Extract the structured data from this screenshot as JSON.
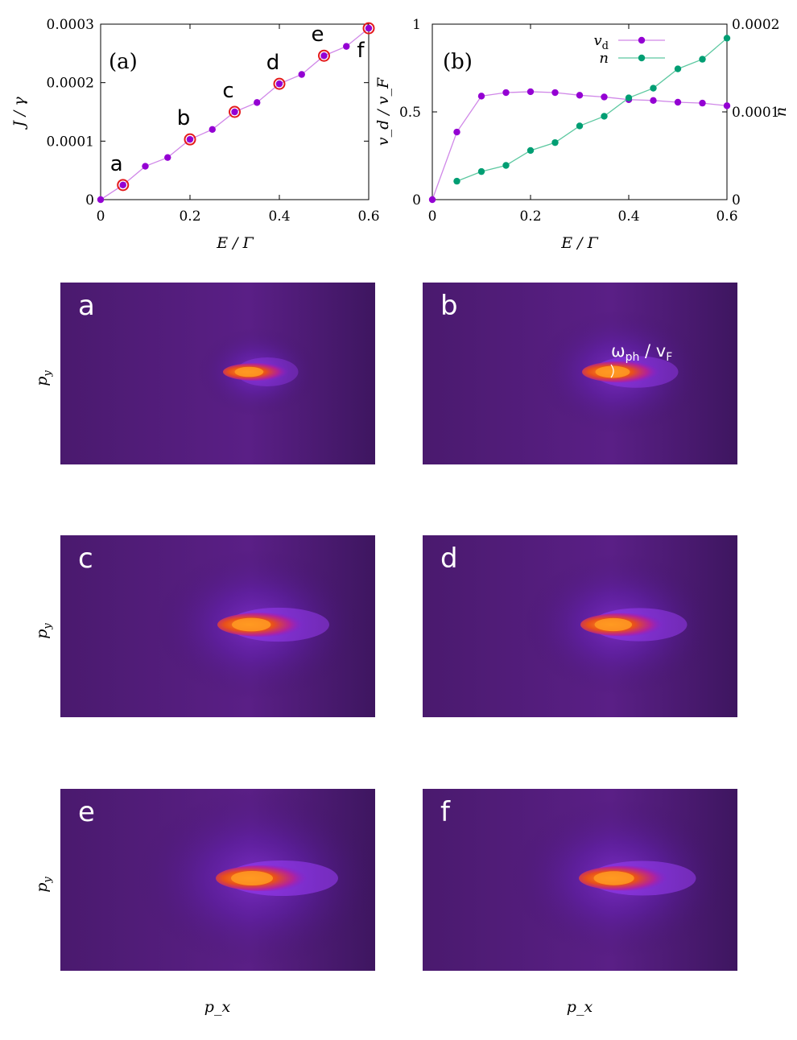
{
  "chart_data": [
    {
      "type": "line",
      "panel": "(a)",
      "xlabel": "E / Γ",
      "ylabel": "J / γ",
      "xlim": [
        0,
        0.6
      ],
      "ylim": [
        0,
        0.0003
      ],
      "xticks": [
        0,
        0.2,
        0.4,
        0.6
      ],
      "xtick_labels": [
        "0",
        "0.2",
        "0.4",
        "0.6"
      ],
      "yticks": [
        0,
        0.0001,
        0.0002,
        0.0003
      ],
      "ytick_labels": [
        "0",
        "0.0001",
        "0.0002",
        "0.0003"
      ],
      "x": [
        0,
        0.05,
        0.1,
        0.15,
        0.2,
        0.25,
        0.3,
        0.35,
        0.4,
        0.45,
        0.5,
        0.55,
        0.6
      ],
      "y": [
        0,
        2.5e-05,
        5.7e-05,
        7.2e-05,
        0.000103,
        0.00012,
        0.00015,
        0.000166,
        0.000198,
        0.000214,
        0.000246,
        0.000262,
        0.000293
      ],
      "series_color": "#9400d3",
      "highlight_color": "#e41a1c",
      "highlighted": [
        {
          "label": "a",
          "x": 0.05
        },
        {
          "label": "b",
          "x": 0.2
        },
        {
          "label": "c",
          "x": 0.3
        },
        {
          "label": "d",
          "x": 0.4
        },
        {
          "label": "e",
          "x": 0.5
        },
        {
          "label": "f",
          "x": 0.6
        }
      ]
    },
    {
      "type": "line",
      "panel": "(b)",
      "xlabel": "E / Γ",
      "ylabel": "v_d / v_F",
      "y2label": "n",
      "xlim": [
        0,
        0.6
      ],
      "ylim": [
        0,
        1
      ],
      "y2lim": [
        0,
        0.0002
      ],
      "xticks": [
        0,
        0.2,
        0.4,
        0.6
      ],
      "xtick_labels": [
        "0",
        "0.2",
        "0.4",
        "0.6"
      ],
      "yticks": [
        0,
        0.5,
        1
      ],
      "ytick_labels": [
        "0",
        "0.5",
        "1"
      ],
      "y2ticks": [
        0,
        0.0001,
        0.0002
      ],
      "y2tick_labels": [
        "0",
        "0.0001",
        "0.0002"
      ],
      "legend_position": "top-right",
      "series": [
        {
          "name": "v",
          "name_sub": "d",
          "axis": "left",
          "color": "#9400d3",
          "x": [
            0,
            0.05,
            0.1,
            0.15,
            0.2,
            0.25,
            0.3,
            0.35,
            0.4,
            0.45,
            0.5,
            0.55,
            0.6
          ],
          "values": [
            0,
            0.385,
            0.59,
            0.61,
            0.615,
            0.61,
            0.595,
            0.585,
            0.57,
            0.565,
            0.555,
            0.55,
            0.535
          ]
        },
        {
          "name": "n",
          "axis": "right",
          "color": "#009e73",
          "x": [
            0.05,
            0.1,
            0.15,
            0.2,
            0.25,
            0.3,
            0.35,
            0.4,
            0.45,
            0.5,
            0.55,
            0.6
          ],
          "values": [
            2.1e-05,
            3.2e-05,
            3.9e-05,
            5.6e-05,
            6.5e-05,
            8.4e-05,
            9.5e-05,
            0.000116,
            0.000127,
            0.000149,
            0.00016,
            0.000184
          ]
        }
      ]
    },
    {
      "type": "heatmap",
      "panels": [
        {
          "label": "a",
          "spread": 0.55,
          "intensity": 0.6,
          "halo": 0.5
        },
        {
          "label": "b",
          "spread": 0.75,
          "intensity": 0.75,
          "halo": 0.7
        },
        {
          "label": "c",
          "spread": 0.9,
          "intensity": 0.85,
          "halo": 0.85
        },
        {
          "label": "d",
          "spread": 0.85,
          "intensity": 0.85,
          "halo": 0.8
        },
        {
          "label": "e",
          "spread": 1.0,
          "intensity": 0.95,
          "halo": 1.0
        },
        {
          "label": "f",
          "spread": 0.95,
          "intensity": 0.9,
          "halo": 0.9
        }
      ],
      "xlabel": "p_x",
      "ylabel": "p_y",
      "annotation": {
        "panel": "b",
        "text": "ω",
        "sub": "ph",
        "rest": " / v",
        "sub2": "F"
      }
    }
  ]
}
